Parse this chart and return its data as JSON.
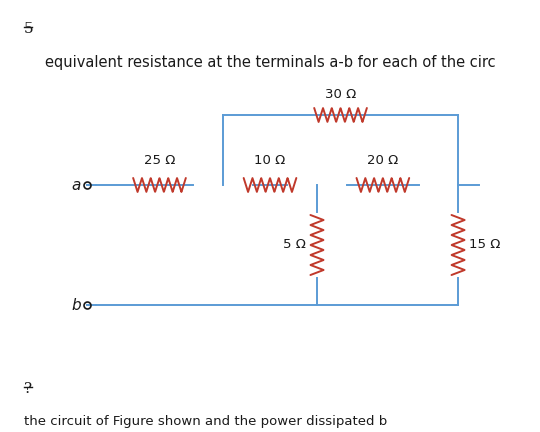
{
  "bg_color": "#ffffff",
  "wire_color": "#5b9bd5",
  "text_color": "#1a1a1a",
  "resistor_color": "#c0392b",
  "title_text": "equivalent resistance at the terminals a-b for each of the circ",
  "title_fontsize": 10.5,
  "node_a_label": "a",
  "node_b_label": "b",
  "page_num": "5",
  "bottom_text": "?",
  "bottom_text2": "the circuit of Figure shown and the power dissipated b",
  "r25_label": "25 Ω",
  "r10_label": "10 Ω",
  "r20_label": "20 Ω",
  "r30_label": "30 Ω",
  "r5_label": "5 Ω",
  "r15_label": "15 Ω"
}
